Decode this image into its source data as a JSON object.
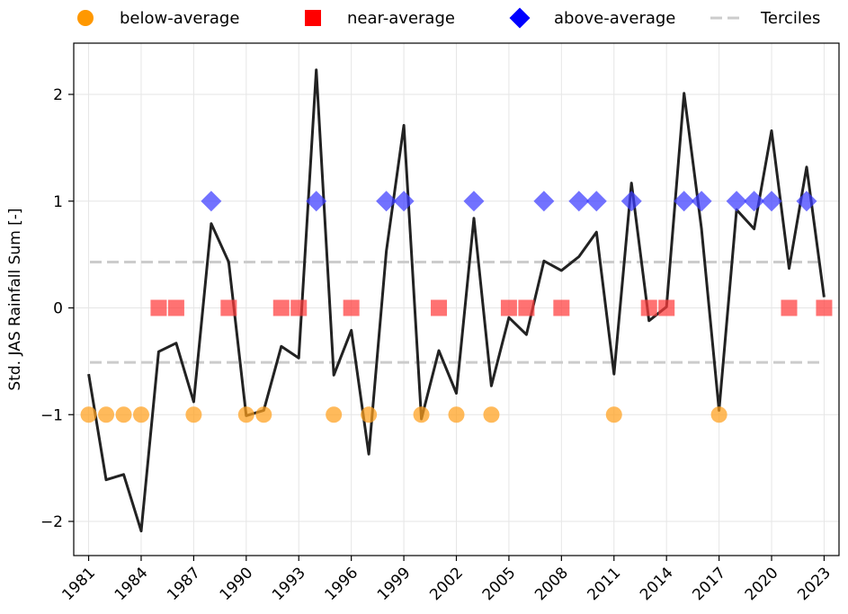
{
  "chart_data": {
    "type": "line",
    "title": "",
    "xlabel": "",
    "ylabel": "Std. JAS Rainfall Sum [-]",
    "xlim": [
      1980.15,
      2023.85
    ],
    "ylim": [
      -2.32,
      2.48
    ],
    "grid": true,
    "legend_position": "top",
    "x_ticks": [
      1981,
      1984,
      1987,
      1990,
      1993,
      1996,
      1999,
      2002,
      2005,
      2008,
      2011,
      2014,
      2017,
      2020,
      2023
    ],
    "x_tick_labels": [
      "1981",
      "1984",
      "1987",
      "1990",
      "1993",
      "1996",
      "1999",
      "2002",
      "2005",
      "2008",
      "2011",
      "2014",
      "2017",
      "2020",
      "2023"
    ],
    "y_ticks": [
      -2,
      -1,
      0,
      1,
      2
    ],
    "y_tick_labels": [
      "−2",
      "−1",
      "0",
      "1",
      "2"
    ],
    "line": {
      "name": "Std. JAS Rainfall Sum",
      "color": "#222222",
      "x": [
        1981,
        1982,
        1983,
        1984,
        1985,
        1986,
        1987,
        1988,
        1989,
        1990,
        1991,
        1992,
        1993,
        1994,
        1995,
        1996,
        1997,
        1998,
        1999,
        2000,
        2001,
        2002,
        2003,
        2004,
        2005,
        2006,
        2007,
        2008,
        2009,
        2010,
        2011,
        2012,
        2013,
        2014,
        2015,
        2016,
        2017,
        2018,
        2019,
        2020,
        2021,
        2022,
        2023
      ],
      "y": [
        -0.62,
        -1.61,
        -1.56,
        -2.09,
        -0.41,
        -0.33,
        -0.88,
        0.79,
        0.43,
        -1.01,
        -0.96,
        -0.36,
        -0.47,
        2.23,
        -0.63,
        -0.21,
        -1.37,
        0.53,
        1.71,
        -1.04,
        -0.4,
        -0.8,
        0.84,
        -0.73,
        -0.09,
        -0.25,
        0.44,
        0.35,
        0.48,
        0.71,
        -0.62,
        1.17,
        -0.12,
        0.01,
        2.01,
        0.74,
        -0.96,
        0.92,
        0.74,
        1.66,
        0.37,
        1.32,
        0.1
      ]
    },
    "terciles": {
      "name": "Terciles",
      "color": "#cccccc",
      "values": [
        0.43,
        -0.51
      ]
    },
    "categories": [
      {
        "name": "below-average",
        "marker": "circle",
        "color": "#ff9f1c",
        "y": -1,
        "years": [
          1981,
          1982,
          1983,
          1984,
          1987,
          1990,
          1991,
          1995,
          1997,
          2000,
          2002,
          2004,
          2011,
          2017
        ]
      },
      {
        "name": "near-average",
        "marker": "square",
        "color": "#ff3b3b",
        "y": 0,
        "years": [
          1985,
          1986,
          1989,
          1992,
          1993,
          1996,
          2001,
          2005,
          2006,
          2008,
          2013,
          2014,
          2021,
          2023
        ]
      },
      {
        "name": "above-average",
        "marker": "diamond",
        "color": "#3b3bff",
        "y": 1,
        "years": [
          1988,
          1994,
          1998,
          1999,
          2003,
          2007,
          2009,
          2010,
          2012,
          2015,
          2016,
          2018,
          2019,
          2020,
          2022
        ]
      }
    ],
    "legend": [
      {
        "label": "below-average",
        "marker": "circle",
        "color": "#ff9800"
      },
      {
        "label": "near-average",
        "marker": "square",
        "color": "#ff0000"
      },
      {
        "label": "above-average",
        "marker": "diamond",
        "color": "#0000ff"
      },
      {
        "label": "Terciles",
        "marker": "dashed-line",
        "color": "#cccccc"
      }
    ]
  }
}
